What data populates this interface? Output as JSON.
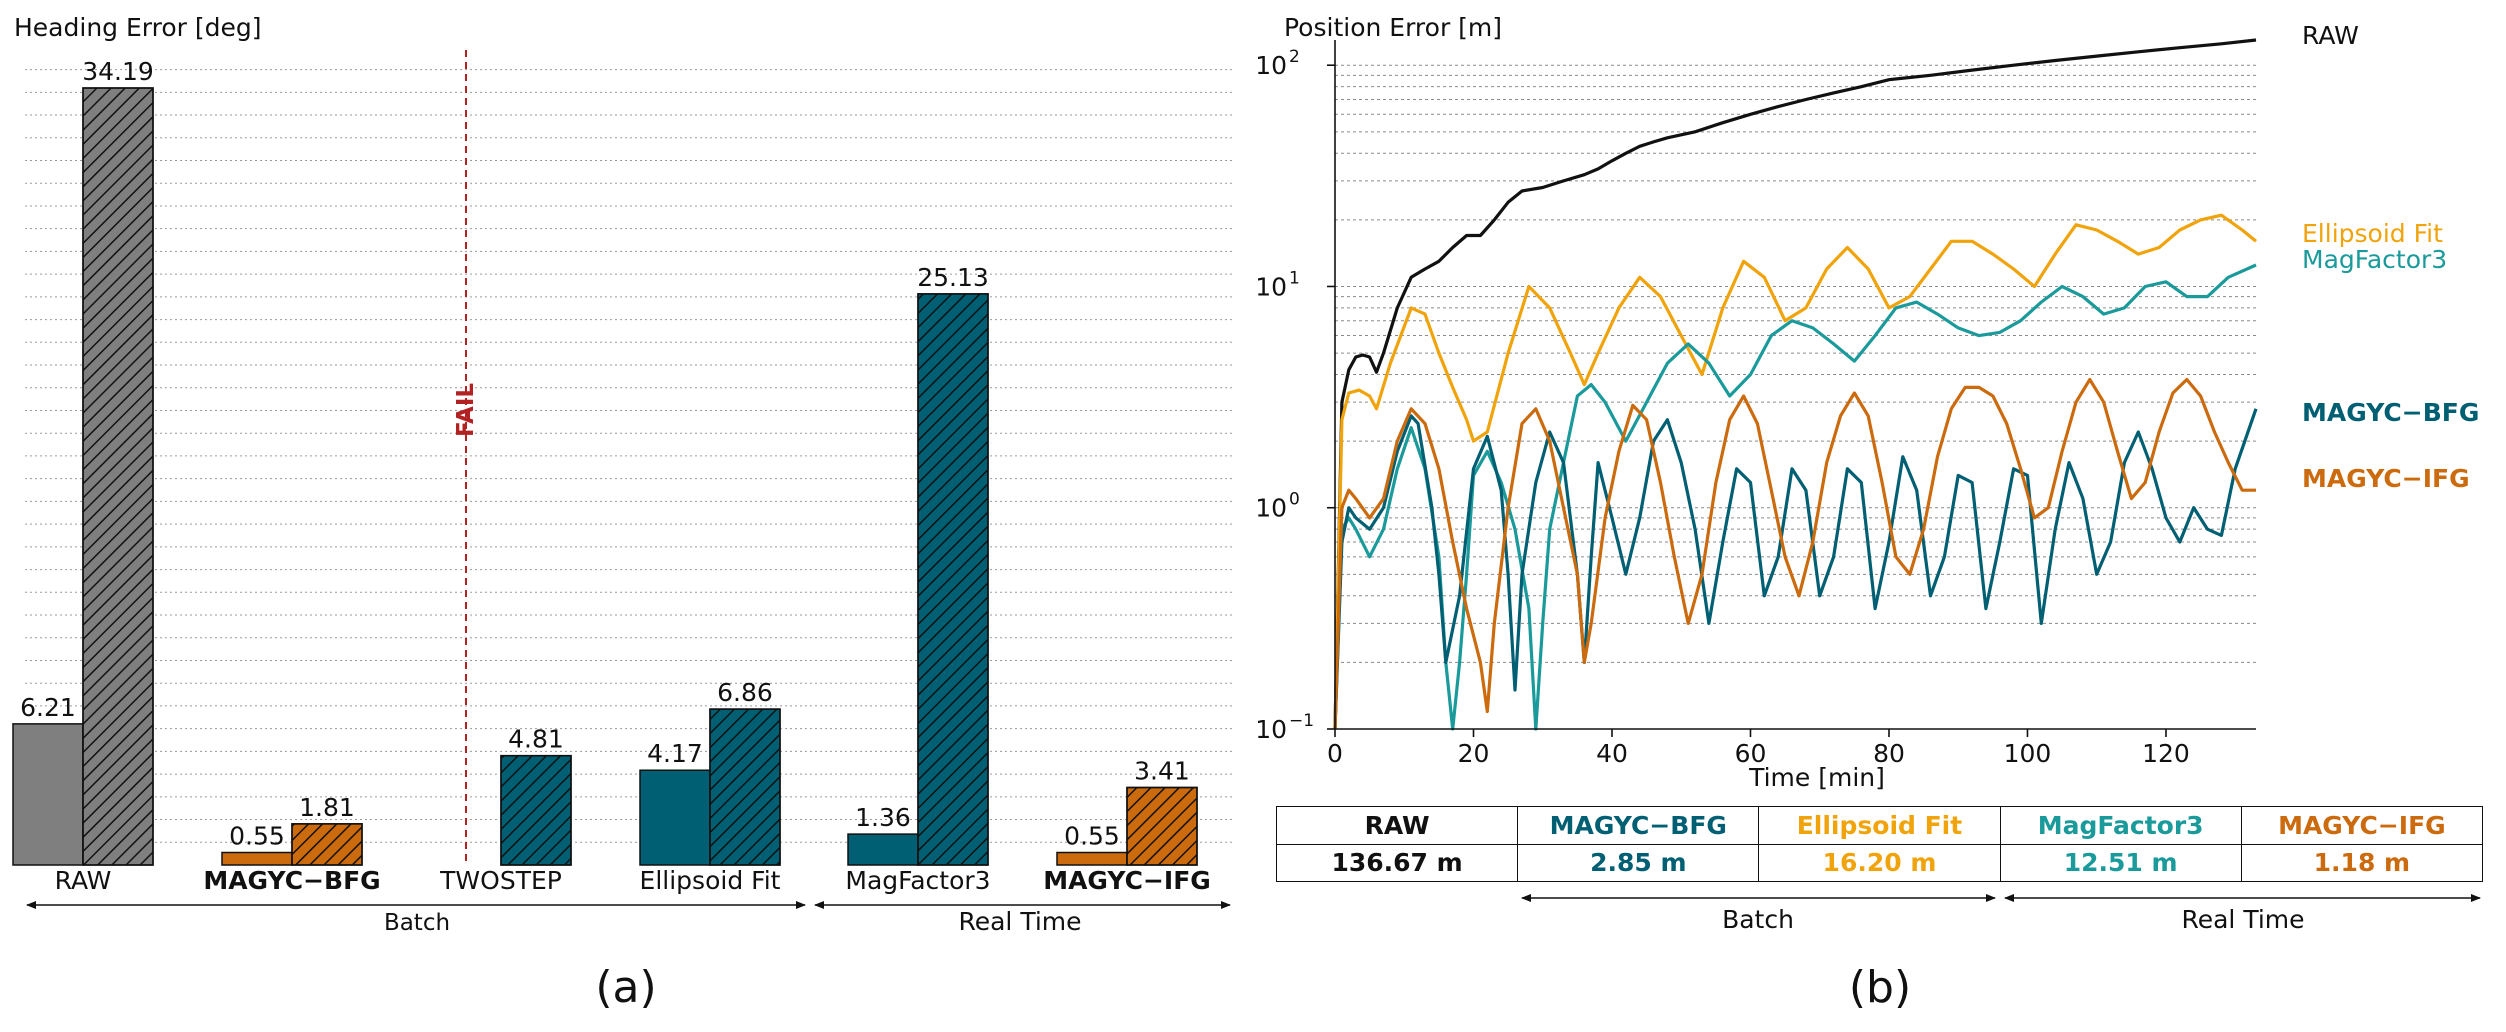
{
  "colors": {
    "raw": "#7f7f7f",
    "batch": "#005f73",
    "realtime": "#cc6a0e",
    "ellipsoid": "#f0a30a",
    "magfactor": "#1a9a9a",
    "fail": "#b22222",
    "dark": "#111111"
  },
  "chart_data": [
    {
      "type": "bar",
      "panel_label": "(a)",
      "ylabel": "Heading Error [deg]",
      "ylim": [
        0,
        35
      ],
      "grid": "y-dotted",
      "categories": [
        "RAW",
        "MAGYC−BFG",
        "TWOSTEP",
        "Ellipsoid Fit",
        "MagFactor3",
        "MAGYC−IFG"
      ],
      "category_bold": [
        false,
        true,
        false,
        false,
        false,
        true
      ],
      "series": [
        {
          "values": [
            6.21,
            0.55,
            null,
            4.17,
            1.36,
            0.55
          ]
        },
        {
          "values": [
            34.19,
            1.81,
            4.81,
            6.86,
            25.13,
            3.41
          ]
        }
      ],
      "value_labels": {
        "plain": [
          "6.21",
          "0.55",
          "",
          "4.17",
          "1.36",
          "0.55"
        ],
        "hatched": [
          "34.19",
          "1.81",
          "4.81",
          "6.86",
          "25.13",
          "3.41"
        ]
      },
      "annotation": "FAIL",
      "groups": [
        {
          "label": "Batch",
          "from": "RAW",
          "to": "Ellipsoid Fit"
        },
        {
          "label": "Real Time",
          "from": "MagFactor3",
          "to": "MAGYC−IFG"
        }
      ]
    },
    {
      "type": "line",
      "panel_label": "(b)",
      "ylabel": "Position Error [m]",
      "xlabel": "Time [min]",
      "yscale": "log",
      "ylim": [
        0.1,
        130
      ],
      "xlim": [
        0,
        133
      ],
      "xticks": [
        "0",
        "20",
        "40",
        "60",
        "80",
        "100",
        "120"
      ],
      "yticks": [
        {
          "base": "10",
          "exp": "−1"
        },
        {
          "base": "10",
          "exp": "0"
        },
        {
          "base": "10",
          "exp": "1"
        },
        {
          "base": "10",
          "exp": "2"
        }
      ],
      "series": [
        {
          "name": "RAW",
          "color": "#111111",
          "bold": false,
          "x": [
            0,
            1,
            2,
            3,
            4,
            5,
            6,
            7,
            9,
            11,
            13,
            15,
            17,
            19,
            21,
            23,
            25,
            27,
            30,
            33,
            36,
            38,
            40,
            42,
            44,
            46,
            48,
            52,
            56,
            60,
            64,
            68,
            72,
            76,
            80,
            86,
            92,
            98,
            104,
            110,
            116,
            122,
            128,
            133
          ],
          "y": [
            0.1,
            3,
            4.2,
            4.8,
            4.9,
            4.8,
            4.1,
            5,
            8,
            11,
            12,
            13,
            15,
            17,
            17,
            20,
            24,
            27,
            28,
            30,
            32,
            34,
            37,
            40,
            43,
            45,
            47,
            50,
            55,
            60,
            65,
            70,
            75,
            80,
            86,
            90,
            95,
            100,
            105,
            110,
            115,
            120,
            125,
            130
          ]
        },
        {
          "name": "Ellipsoid Fit",
          "color": "#f0a30a",
          "bold": false,
          "x": [
            0,
            1,
            2,
            3.5,
            5,
            6,
            8,
            11,
            13,
            15,
            17,
            19,
            20,
            22,
            25,
            28,
            31,
            34,
            36,
            38,
            41,
            44,
            47,
            50,
            53,
            56,
            59,
            62,
            65,
            68,
            71,
            74,
            77,
            80,
            83,
            86,
            89,
            92,
            95,
            98,
            101,
            104,
            107,
            110,
            113,
            116,
            119,
            122,
            125,
            128,
            131,
            133
          ],
          "y": [
            0.1,
            2.5,
            3.3,
            3.4,
            3.2,
            2.8,
            4.5,
            8,
            7.5,
            5,
            3.5,
            2.5,
            2,
            2.2,
            5,
            10,
            8,
            5,
            3.6,
            5,
            8,
            11,
            9,
            6,
            4,
            8,
            13,
            11,
            7,
            8,
            12,
            15,
            12,
            8,
            9,
            12,
            16,
            16,
            14,
            12,
            10,
            14,
            19,
            18,
            16,
            14,
            15,
            18,
            20,
            21,
            18,
            16
          ]
        },
        {
          "name": "MagFactor3",
          "color": "#1a9a9a",
          "bold": false,
          "x": [
            0,
            1,
            2,
            3,
            5,
            7,
            9,
            11,
            13,
            15,
            16,
            17,
            18,
            19,
            20,
            22,
            24,
            26,
            28,
            29,
            30,
            31,
            33,
            35,
            37,
            39,
            42,
            45,
            48,
            51,
            54,
            57,
            60,
            63,
            66,
            69,
            72,
            75,
            78,
            81,
            84,
            87,
            90,
            93,
            96,
            99,
            102,
            105,
            108,
            111,
            114,
            117,
            120,
            123,
            126,
            129,
            133
          ],
          "y": [
            0.1,
            0.8,
            0.9,
            0.8,
            0.6,
            0.8,
            1.5,
            2.3,
            1.5,
            0.6,
            0.2,
            0.1,
            0.2,
            0.5,
            1.4,
            1.8,
            1.3,
            0.8,
            0.35,
            0.1,
            0.3,
            0.8,
            1.6,
            3.2,
            3.6,
            3,
            2,
            3,
            4.5,
            5.5,
            4.5,
            3.2,
            4,
            6,
            7,
            6.5,
            5.5,
            4.6,
            6,
            8,
            8.5,
            7.5,
            6.5,
            6,
            6.2,
            7,
            8.5,
            10,
            9,
            7.5,
            8,
            10,
            10.5,
            9,
            9,
            11,
            12.5
          ]
        },
        {
          "name": "MAGYC−BFG",
          "color": "#005f73",
          "bold": true,
          "x": [
            0,
            1,
            2,
            3,
            5,
            7,
            9,
            11,
            12,
            14,
            15,
            16,
            18,
            20,
            22,
            24,
            25,
            26,
            27,
            29,
            31,
            33,
            35,
            36,
            37,
            38,
            40,
            42,
            44,
            46,
            48,
            50,
            52,
            54,
            56,
            58,
            60,
            62,
            64,
            66,
            68,
            70,
            72,
            74,
            76,
            78,
            80,
            82,
            84,
            86,
            88,
            90,
            92,
            94,
            96,
            98,
            100,
            102,
            104,
            106,
            108,
            110,
            112,
            114,
            116,
            118,
            120,
            122,
            124,
            126,
            128,
            130,
            133
          ],
          "y": [
            0.1,
            0.7,
            1,
            0.9,
            0.8,
            1,
            1.8,
            2.6,
            2.4,
            1,
            0.5,
            0.2,
            0.4,
            1.5,
            2.1,
            1.2,
            0.5,
            0.15,
            0.5,
            1.3,
            2.2,
            1.6,
            0.5,
            0.2,
            0.6,
            1.6,
            0.9,
            0.5,
            0.9,
            2,
            2.5,
            1.6,
            0.8,
            0.3,
            0.7,
            1.5,
            1.3,
            0.4,
            0.6,
            1.5,
            1.2,
            0.4,
            0.6,
            1.5,
            1.3,
            0.35,
            0.7,
            1.7,
            1.2,
            0.4,
            0.6,
            1.4,
            1.3,
            0.35,
            0.7,
            1.5,
            1.4,
            0.3,
            0.8,
            1.6,
            1.1,
            0.5,
            0.7,
            1.6,
            2.2,
            1.5,
            0.9,
            0.7,
            1,
            0.8,
            0.75,
            1.5,
            2.8
          ]
        },
        {
          "name": "MAGYC−IFG",
          "color": "#cc6a0e",
          "bold": true,
          "x": [
            0,
            1,
            2,
            3,
            5,
            7,
            9,
            11,
            13,
            15,
            17,
            19,
            21,
            22,
            23,
            25,
            27,
            29,
            31,
            33,
            35,
            36,
            37,
            39,
            41,
            43,
            45,
            47,
            49,
            51,
            53,
            55,
            57,
            59,
            61,
            63,
            65,
            67,
            69,
            71,
            73,
            75,
            77,
            79,
            81,
            83,
            85,
            87,
            89,
            91,
            93,
            95,
            97,
            99,
            101,
            103,
            105,
            107,
            109,
            111,
            113,
            115,
            117,
            119,
            121,
            123,
            125,
            127,
            129,
            131,
            133
          ],
          "y": [
            0.1,
            1,
            1.2,
            1.1,
            0.9,
            1.1,
            2,
            2.8,
            2.4,
            1.5,
            0.7,
            0.35,
            0.2,
            0.12,
            0.3,
            1,
            2.4,
            2.8,
            2,
            1,
            0.5,
            0.2,
            0.3,
            0.9,
            1.8,
            2.9,
            2.5,
            1.3,
            0.6,
            0.3,
            0.5,
            1.3,
            2.5,
            3.2,
            2.4,
            1.2,
            0.6,
            0.4,
            0.7,
            1.6,
            2.6,
            3.3,
            2.6,
            1.3,
            0.6,
            0.5,
            0.8,
            1.7,
            2.8,
            3.5,
            3.5,
            3.2,
            2.4,
            1.5,
            0.9,
            1,
            1.8,
            3,
            3.8,
            3,
            1.8,
            1.1,
            1.3,
            2.2,
            3.3,
            3.8,
            3.2,
            2.2,
            1.6,
            1.2,
            1.2
          ]
        }
      ],
      "table": {
        "headers": [
          "RAW",
          "MAGYC−BFG",
          "Ellipsoid Fit",
          "MagFactor3",
          "MAGYC−IFG"
        ],
        "values": [
          "136.67 m",
          "2.85 m",
          "16.20 m",
          "12.51 m",
          "1.18 m"
        ],
        "colors": [
          "#111111",
          "#005f73",
          "#f0a30a",
          "#1a9a9a",
          "#cc6a0e"
        ]
      },
      "groups": [
        {
          "label": "Batch",
          "from": "MAGYC−BFG",
          "to": "Ellipsoid Fit"
        },
        {
          "label": "Real Time",
          "from": "MagFactor3",
          "to": "MAGYC−IFG"
        }
      ]
    }
  ]
}
